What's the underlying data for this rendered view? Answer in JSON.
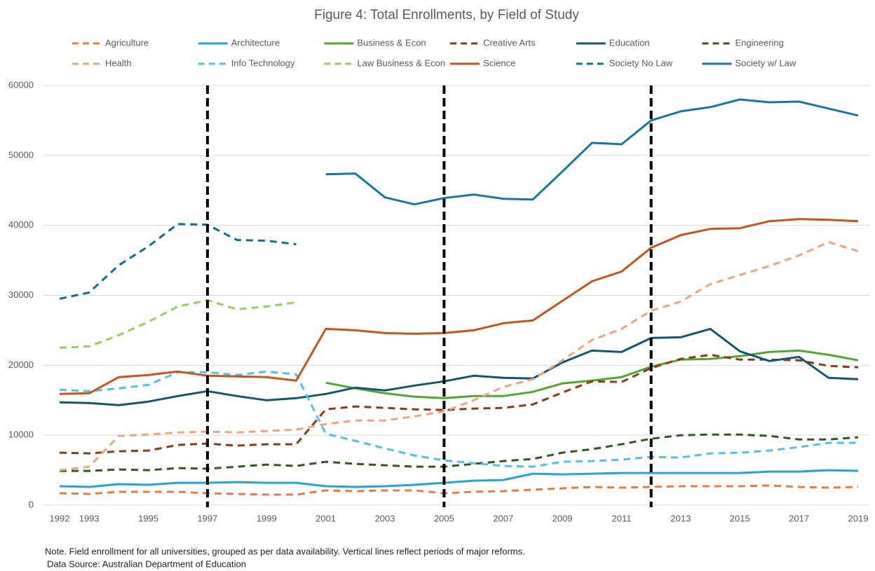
{
  "chart_data": {
    "type": "line",
    "title": "Figure 4: Total Enrollments, by Field of Study",
    "note": "Note. Field enrollment for all universities, grouped as per data availability. Vertical lines reflect periods of major reforms.",
    "source": "Data Source: Australian Department of Education",
    "x": [
      1992,
      1993,
      1994,
      1995,
      1996,
      1997,
      1998,
      1999,
      2000,
      2001,
      2002,
      2003,
      2004,
      2005,
      2006,
      2007,
      2008,
      2009,
      2010,
      2011,
      2012,
      2013,
      2014,
      2015,
      2016,
      2017,
      2018,
      2019
    ],
    "xlim": [
      1992,
      2019
    ],
    "xticks": [
      1992,
      1993,
      1995,
      1997,
      1999,
      2001,
      2003,
      2005,
      2007,
      2009,
      2011,
      2013,
      2015,
      2017,
      2019
    ],
    "ylim": [
      0,
      60000
    ],
    "yticks": [
      0,
      10000,
      20000,
      30000,
      40000,
      50000,
      60000
    ],
    "grid": true,
    "legend": "top",
    "reform_years": [
      1997,
      2005,
      2012
    ],
    "series": [
      {
        "name": "Agriculture",
        "color": "#e97c3e",
        "dashed": true,
        "values": [
          1700,
          1600,
          1900,
          1900,
          1900,
          1700,
          1600,
          1500,
          1500,
          2100,
          2000,
          2100,
          2100,
          1700,
          1900,
          2000,
          2200,
          2400,
          2600,
          2500,
          2600,
          2700,
          2700,
          2700,
          2800,
          2600,
          2500,
          2600
        ]
      },
      {
        "name": "Architecture",
        "color": "#22a3dc",
        "dashed": false,
        "values": [
          2700,
          2600,
          3000,
          2900,
          3200,
          3200,
          3300,
          3200,
          3200,
          2700,
          2600,
          2700,
          2900,
          3200,
          3500,
          3600,
          4500,
          4400,
          4500,
          4600,
          4600,
          4600,
          4600,
          4600,
          4800,
          4800,
          5000,
          4900
        ]
      },
      {
        "name": "Business & Econ",
        "color": "#4ea72e",
        "dashed": false,
        "values": [
          null,
          null,
          null,
          null,
          null,
          null,
          null,
          null,
          null,
          17500,
          16700,
          16000,
          15500,
          15300,
          15600,
          15600,
          16200,
          17400,
          17800,
          18300,
          19800,
          20800,
          20900,
          21300,
          21900,
          22100,
          21500,
          20700
        ]
      },
      {
        "name": "Creative Arts",
        "color": "#8b3a14",
        "dashed": true,
        "values": [
          7500,
          7400,
          7700,
          7800,
          8600,
          8800,
          8500,
          8700,
          8700,
          13700,
          14100,
          13900,
          13700,
          13600,
          13800,
          13900,
          14400,
          16100,
          17700,
          17600,
          19600,
          20900,
          21500,
          20800,
          20800,
          20700,
          19900,
          19700
        ]
      },
      {
        "name": "Education",
        "color": "#10576f",
        "dashed": false,
        "values": [
          14700,
          14600,
          14300,
          14800,
          15600,
          16300,
          15600,
          15000,
          15300,
          15900,
          16800,
          16400,
          17100,
          17700,
          18500,
          18200,
          18100,
          20400,
          22100,
          21900,
          23900,
          24000,
          25200,
          22000,
          20600,
          21200,
          18200,
          18000
        ]
      },
      {
        "name": "Engineering",
        "color": "#2e5a1c",
        "dashed": true,
        "values": [
          4900,
          4900,
          5100,
          5000,
          5300,
          5200,
          5500,
          5800,
          5600,
          6200,
          5900,
          5700,
          5500,
          5500,
          5900,
          6300,
          6600,
          7500,
          8000,
          8700,
          9500,
          10000,
          10100,
          10100,
          9900,
          9400,
          9400,
          9700
        ]
      },
      {
        "name": "Health",
        "color": "#f0a67a",
        "dashed": true,
        "values": [
          5000,
          5500,
          9900,
          10100,
          10400,
          10500,
          10400,
          10600,
          10800,
          11600,
          12100,
          12100,
          12700,
          13400,
          15000,
          16900,
          18000,
          20700,
          23600,
          25200,
          27800,
          29100,
          31600,
          32900,
          34200,
          35700,
          37600,
          36300
        ]
      },
      {
        "name": "Info Technology",
        "color": "#4ec1ee",
        "dashed": true,
        "values": [
          16500,
          16300,
          16700,
          17200,
          19000,
          19000,
          18600,
          19100,
          18700,
          10200,
          9200,
          8100,
          7100,
          6400,
          6000,
          5600,
          5500,
          6200,
          6300,
          6500,
          6900,
          6800,
          7400,
          7500,
          7800,
          8300,
          8900,
          8900
        ]
      },
      {
        "name": "Law Business & Econ",
        "color": "#8ed45a",
        "dashed": true,
        "values": [
          22500,
          22700,
          24300,
          26200,
          28400,
          29300,
          28000,
          28400,
          29000,
          null,
          null,
          null,
          null,
          null,
          null,
          null,
          null,
          null,
          null,
          null,
          null,
          null,
          null,
          null,
          null,
          null,
          null,
          null
        ]
      },
      {
        "name": "Science",
        "color": "#c9541a",
        "dashed": false,
        "values": [
          15900,
          16000,
          18300,
          18600,
          19100,
          18500,
          18400,
          18300,
          17800,
          25200,
          25000,
          24600,
          24500,
          24600,
          25000,
          26000,
          26400,
          29200,
          32000,
          33400,
          36800,
          38600,
          39500,
          39600,
          40600,
          40900,
          40800,
          40600
        ]
      },
      {
        "name": "Society No Law",
        "color": "#0e6e99",
        "dashed": true,
        "values": [
          29500,
          30400,
          34300,
          37000,
          40200,
          40100,
          37900,
          37800,
          37300,
          null,
          null,
          null,
          null,
          null,
          null,
          null,
          null,
          null,
          null,
          null,
          null,
          null,
          null,
          null,
          null,
          null,
          null,
          null
        ]
      },
      {
        "name": "Society w/ Law",
        "color": "#16789f",
        "dashed": false,
        "values": [
          null,
          null,
          null,
          null,
          null,
          null,
          null,
          null,
          null,
          47300,
          47400,
          44000,
          43000,
          43900,
          44400,
          43800,
          43700,
          47700,
          51800,
          51600,
          55000,
          56300,
          56900,
          58000,
          57600,
          57700,
          56700,
          55700
        ]
      }
    ]
  }
}
